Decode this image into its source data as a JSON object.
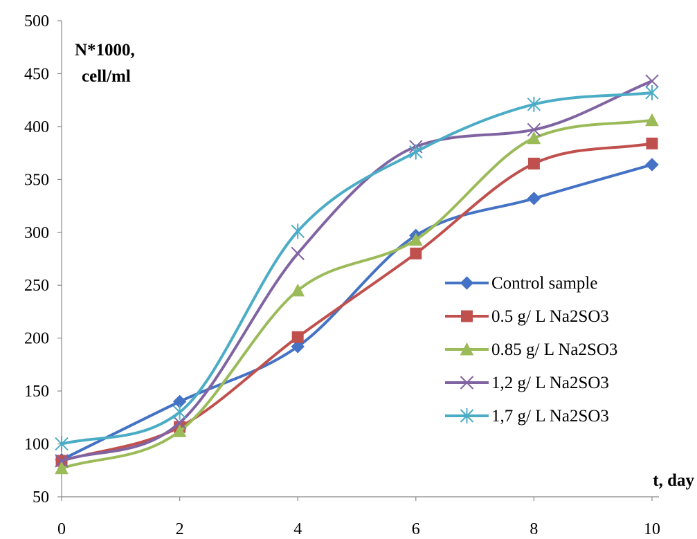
{
  "chart_data": {
    "type": "line",
    "title": "",
    "ylabel": [
      "N*1000,",
      "cell/ml"
    ],
    "xlabel": "t, day",
    "x": [
      0,
      2,
      4,
      6,
      8,
      10
    ],
    "xlim": [
      0,
      10
    ],
    "ylim": [
      50,
      500
    ],
    "xticks": [
      "0",
      "2",
      "4",
      "6",
      "8",
      "10"
    ],
    "yticks": [
      "50",
      "100",
      "150",
      "200",
      "250",
      "300",
      "350",
      "400",
      "450",
      "500"
    ],
    "grid": false,
    "smooth": true,
    "legend_position": "right",
    "series": [
      {
        "name": "Control sample",
        "color": "#4472C4",
        "marker": "diamond",
        "values": [
          85,
          140,
          192,
          297,
          332,
          364
        ]
      },
      {
        "name": "0.5 g/ L  Na2SO3",
        "color": "#C0504D",
        "marker": "square",
        "values": [
          84,
          116,
          201,
          280,
          365,
          384
        ]
      },
      {
        "name": "0.85  g/ L  Na2SO3",
        "color": "#9BBB59",
        "marker": "triangle",
        "values": [
          77,
          112,
          245,
          293,
          389,
          406
        ]
      },
      {
        "name": "1,2  g/ L  Na2SO3",
        "color": "#8064A2",
        "marker": "x",
        "values": [
          84,
          120,
          280,
          381,
          397,
          443
        ]
      },
      {
        "name": "1,7  g/ L  Na2SO3",
        "color": "#4BACC6",
        "marker": "star",
        "values": [
          100,
          130,
          301,
          376,
          421,
          432
        ]
      }
    ]
  }
}
